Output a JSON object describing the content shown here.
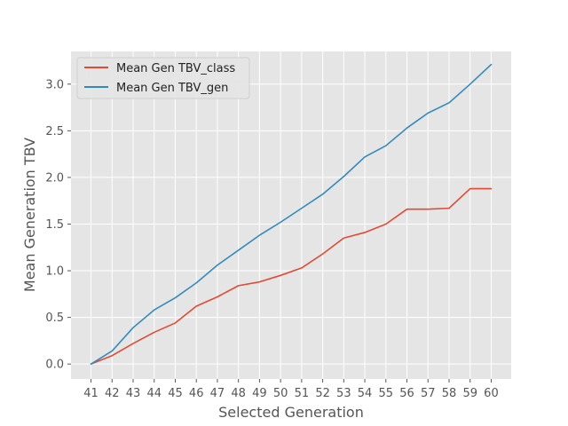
{
  "chart_data": {
    "type": "line",
    "title": "",
    "xlabel": "Selected Generation",
    "ylabel": "Mean Generation TBV",
    "x": [
      41,
      42,
      43,
      44,
      45,
      46,
      47,
      48,
      49,
      50,
      51,
      52,
      53,
      54,
      55,
      56,
      57,
      58,
      59,
      60
    ],
    "xticks": [
      "41",
      "42",
      "43",
      "44",
      "45",
      "46",
      "47",
      "48",
      "49",
      "50",
      "51",
      "52",
      "53",
      "54",
      "55",
      "56",
      "57",
      "58",
      "59",
      "60"
    ],
    "ylim": [
      -0.16,
      3.35
    ],
    "yticks": [
      0.0,
      0.5,
      1.0,
      1.5,
      2.0,
      2.5,
      3.0
    ],
    "ytick_labels": [
      "0.0",
      "0.5",
      "1.0",
      "1.5",
      "2.0",
      "2.5",
      "3.0"
    ],
    "grid": true,
    "legend_position": "top-left",
    "series": [
      {
        "name": "Mean Gen TBV_class",
        "color": "#E24A33",
        "values": [
          0.0,
          0.09,
          0.22,
          0.34,
          0.44,
          0.62,
          0.72,
          0.84,
          0.88,
          0.95,
          1.03,
          1.18,
          1.35,
          1.41,
          1.5,
          1.66,
          1.66,
          1.67,
          1.88,
          1.88
        ]
      },
      {
        "name": "Mean Gen TBV_gen",
        "color": "#348ABD",
        "values": [
          0.0,
          0.14,
          0.39,
          0.58,
          0.71,
          0.87,
          1.06,
          1.22,
          1.38,
          1.52,
          1.67,
          1.82,
          2.01,
          2.22,
          2.34,
          2.53,
          2.69,
          2.8,
          3.0,
          3.21
        ]
      }
    ]
  }
}
